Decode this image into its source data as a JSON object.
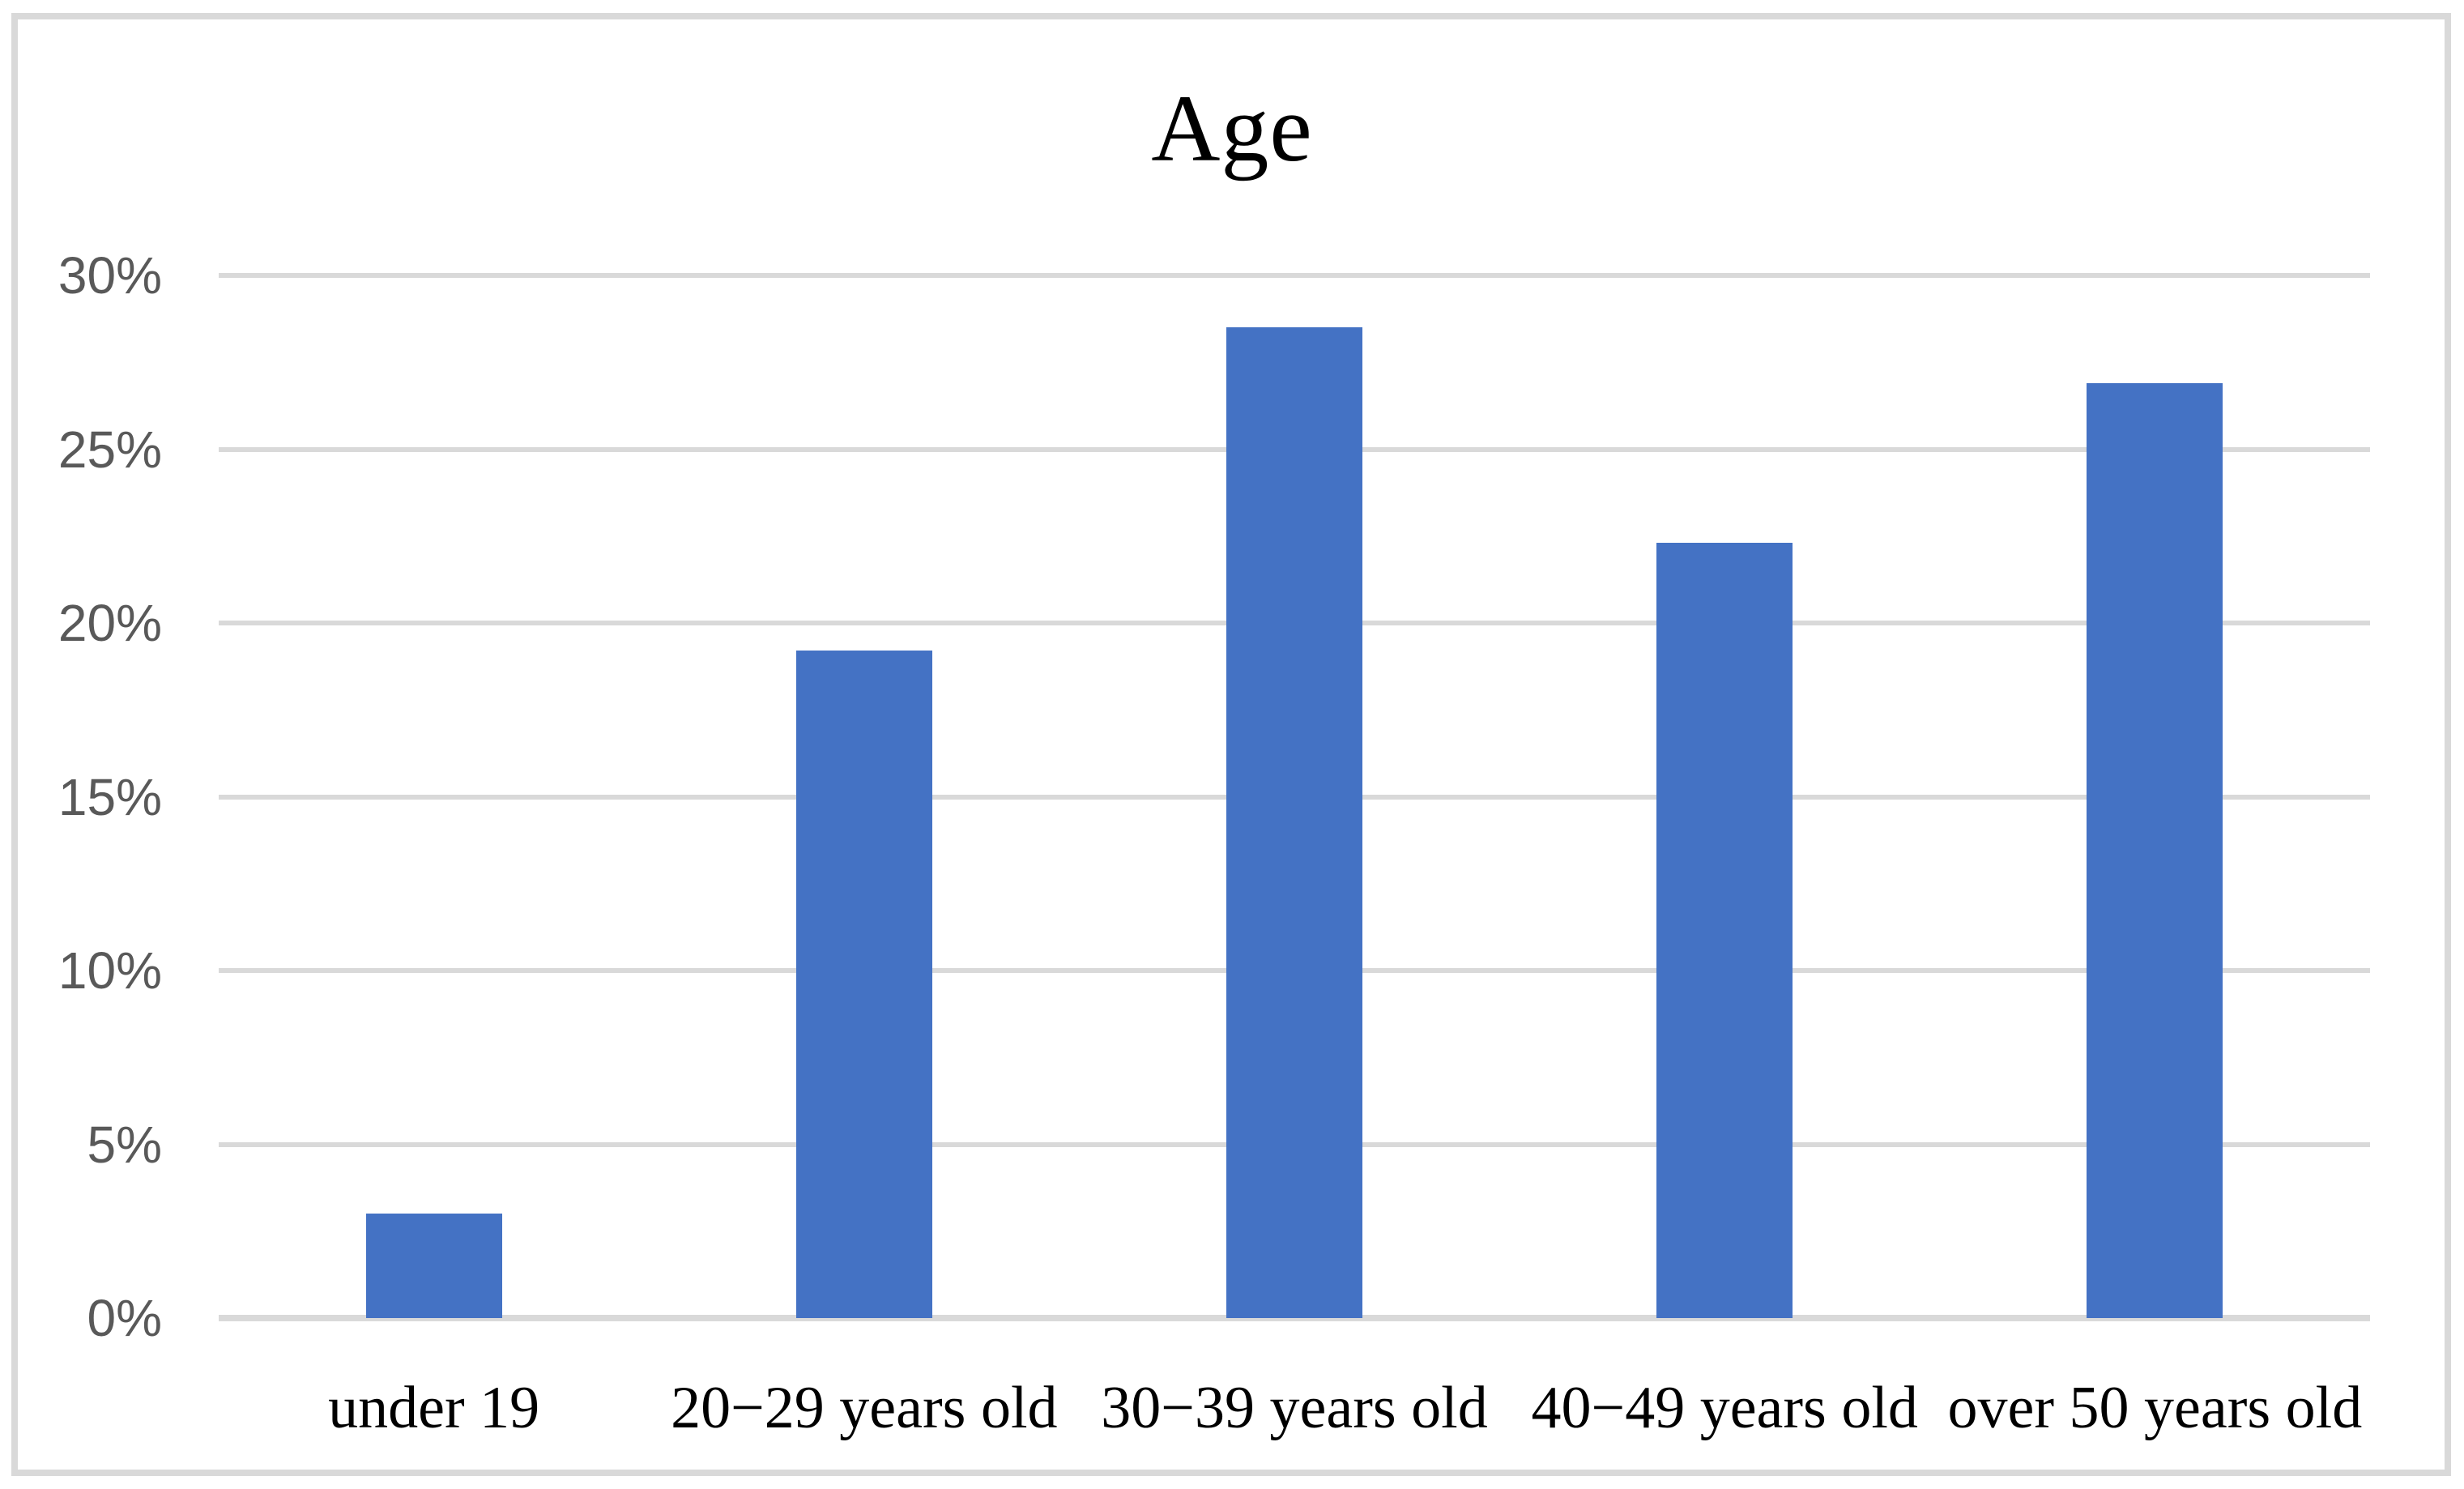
{
  "chart_data": {
    "type": "bar",
    "title": "Age",
    "categories": [
      "under 19",
      "20−29 years old",
      "30−39 years old",
      "40−49 years old",
      "over 50 years old"
    ],
    "values": [
      3,
      19.2,
      28.5,
      22.3,
      26.9
    ],
    "value_unit": "percent",
    "xlabel": "",
    "ylabel": "",
    "ylim": [
      0,
      30
    ],
    "y_ticks": [
      {
        "value": 0,
        "label": "0%"
      },
      {
        "value": 5,
        "label": "5%"
      },
      {
        "value": 10,
        "label": "10%"
      },
      {
        "value": 15,
        "label": "15%"
      },
      {
        "value": 20,
        "label": "20%"
      },
      {
        "value": 25,
        "label": "25%"
      },
      {
        "value": 30,
        "label": "30%"
      }
    ],
    "grid": true,
    "legend": "none",
    "colors": {
      "bar": "#4472C4",
      "gridline": "#D9D9D9",
      "axis_line": "#D9D9D9",
      "y_tick_label": "#595959",
      "category_label": "#000000",
      "frame_border": "#D9D9D9",
      "background": "#FFFFFF"
    }
  }
}
